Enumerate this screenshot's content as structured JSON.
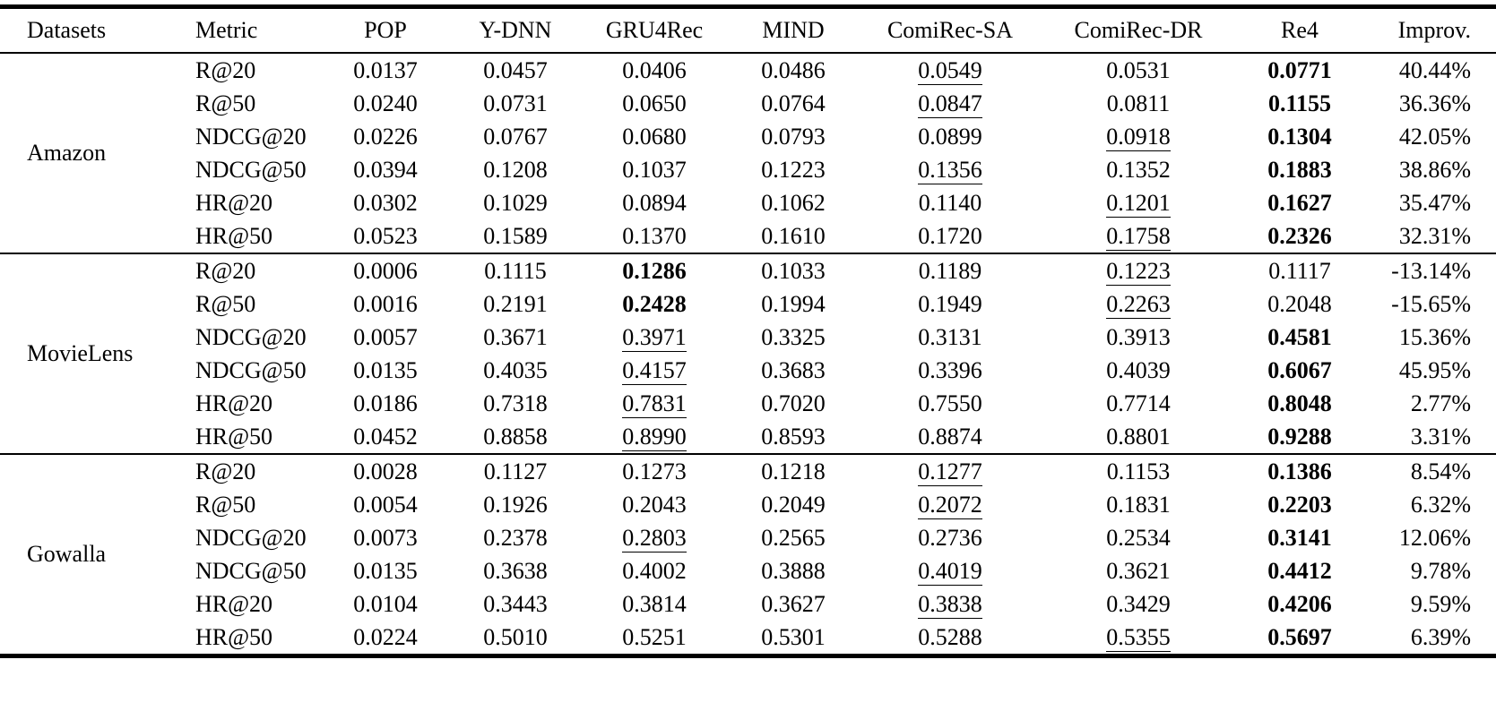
{
  "table": {
    "columns": [
      "Datasets",
      "Metric",
      "POP",
      "Y-DNN",
      "GRU4Rec",
      "MIND",
      "ComiRec-SA",
      "ComiRec-DR",
      "Re4",
      "Improv."
    ],
    "groups": [
      {
        "dataset": "Amazon",
        "rows": [
          {
            "metric": "R@20",
            "values": [
              "0.0137",
              "0.0457",
              "0.0406",
              "0.0486",
              "0.0549",
              "0.0531",
              "0.0771"
            ],
            "best": 6,
            "second": 4,
            "improv": "40.44%"
          },
          {
            "metric": "R@50",
            "values": [
              "0.0240",
              "0.0731",
              "0.0650",
              "0.0764",
              "0.0847",
              "0.0811",
              "0.1155"
            ],
            "best": 6,
            "second": 4,
            "improv": "36.36%"
          },
          {
            "metric": "NDCG@20",
            "values": [
              "0.0226",
              "0.0767",
              "0.0680",
              "0.0793",
              "0.0899",
              "0.0918",
              "0.1304"
            ],
            "best": 6,
            "second": 5,
            "improv": "42.05%"
          },
          {
            "metric": "NDCG@50",
            "values": [
              "0.0394",
              "0.1208",
              "0.1037",
              "0.1223",
              "0.1356",
              "0.1352",
              "0.1883"
            ],
            "best": 6,
            "second": 4,
            "improv": "38.86%"
          },
          {
            "metric": "HR@20",
            "values": [
              "0.0302",
              "0.1029",
              "0.0894",
              "0.1062",
              "0.1140",
              "0.1201",
              "0.1627"
            ],
            "best": 6,
            "second": 5,
            "improv": "35.47%"
          },
          {
            "metric": "HR@50",
            "values": [
              "0.0523",
              "0.1589",
              "0.1370",
              "0.1610",
              "0.1720",
              "0.1758",
              "0.2326"
            ],
            "best": 6,
            "second": 5,
            "improv": "32.31%"
          }
        ]
      },
      {
        "dataset": "MovieLens",
        "rows": [
          {
            "metric": "R@20",
            "values": [
              "0.0006",
              "0.1115",
              "0.1286",
              "0.1033",
              "0.1189",
              "0.1223",
              "0.1117"
            ],
            "best": 2,
            "second": 5,
            "improv": "-13.14%"
          },
          {
            "metric": "R@50",
            "values": [
              "0.0016",
              "0.2191",
              "0.2428",
              "0.1994",
              "0.1949",
              "0.2263",
              "0.2048"
            ],
            "best": 2,
            "second": 5,
            "improv": "-15.65%"
          },
          {
            "metric": "NDCG@20",
            "values": [
              "0.0057",
              "0.3671",
              "0.3971",
              "0.3325",
              "0.3131",
              "0.3913",
              "0.4581"
            ],
            "best": 6,
            "second": 2,
            "improv": "15.36%"
          },
          {
            "metric": "NDCG@50",
            "values": [
              "0.0135",
              "0.4035",
              "0.4157",
              "0.3683",
              "0.3396",
              "0.4039",
              "0.6067"
            ],
            "best": 6,
            "second": 2,
            "improv": "45.95%"
          },
          {
            "metric": "HR@20",
            "values": [
              "0.0186",
              "0.7318",
              "0.7831",
              "0.7020",
              "0.7550",
              "0.7714",
              "0.8048"
            ],
            "best": 6,
            "second": 2,
            "improv": "2.77%"
          },
          {
            "metric": "HR@50",
            "values": [
              "0.0452",
              "0.8858",
              "0.8990",
              "0.8593",
              "0.8874",
              "0.8801",
              "0.9288"
            ],
            "best": 6,
            "second": 2,
            "improv": "3.31%"
          }
        ]
      },
      {
        "dataset": "Gowalla",
        "rows": [
          {
            "metric": "R@20",
            "values": [
              "0.0028",
              "0.1127",
              "0.1273",
              "0.1218",
              "0.1277",
              "0.1153",
              "0.1386"
            ],
            "best": 6,
            "second": 4,
            "improv": "8.54%"
          },
          {
            "metric": "R@50",
            "values": [
              "0.0054",
              "0.1926",
              "0.2043",
              "0.2049",
              "0.2072",
              "0.1831",
              "0.2203"
            ],
            "best": 6,
            "second": 4,
            "improv": "6.32%"
          },
          {
            "metric": "NDCG@20",
            "values": [
              "0.0073",
              "0.2378",
              "0.2803",
              "0.2565",
              "0.2736",
              "0.2534",
              "0.3141"
            ],
            "best": 6,
            "second": 2,
            "improv": "12.06%"
          },
          {
            "metric": "NDCG@50",
            "values": [
              "0.0135",
              "0.3638",
              "0.4002",
              "0.3888",
              "0.4019",
              "0.3621",
              "0.4412"
            ],
            "best": 6,
            "second": 4,
            "improv": "9.78%"
          },
          {
            "metric": "HR@20",
            "values": [
              "0.0104",
              "0.3443",
              "0.3814",
              "0.3627",
              "0.3838",
              "0.3429",
              "0.4206"
            ],
            "best": 6,
            "second": 4,
            "improv": "9.59%"
          },
          {
            "metric": "HR@50",
            "values": [
              "0.0224",
              "0.5010",
              "0.5251",
              "0.5301",
              "0.5288",
              "0.5355",
              "0.5697"
            ],
            "best": 6,
            "second": 5,
            "improv": "6.39%"
          }
        ]
      }
    ]
  }
}
